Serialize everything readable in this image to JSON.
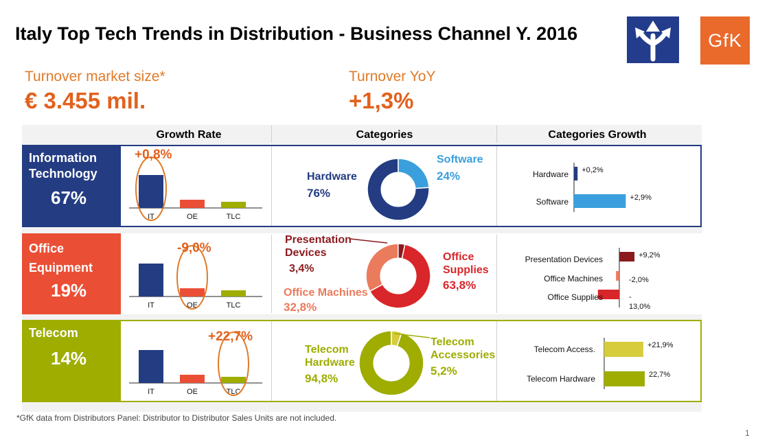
{
  "title": "Italy Top Tech Trends in Distribution - Business Channel Y. 2016",
  "logo": {
    "brand": "GfK",
    "accent": "#ea6a2b",
    "icon": "diverging-arrows-icon"
  },
  "kpis": [
    {
      "label": "Turnover market size*",
      "value": "€ 3.455 mil."
    },
    {
      "label": "Turnover YoY",
      "value": "+1,3%"
    }
  ],
  "column_headers": [
    "Growth Rate",
    "Categories",
    "Categories Growth"
  ],
  "footnote": "*GfK data from Distributors Panel: Distributor to Distributor Sales Units are not included.",
  "page_number": "1",
  "colors": {
    "it_dark": "#233c82",
    "it_light": "#3a9fdc",
    "oe_dark": "#ea4f35",
    "oe_red": "#d8262a",
    "oe_salmon": "#ea7b5c",
    "oe_maroon": "#8b1a1f",
    "tlc_green": "#9ead00",
    "tlc_light": "#d6cc3c",
    "highlight": "#e07a28"
  },
  "chart_data": [
    {
      "type": "bar",
      "segment": "Information Technology",
      "share": "67%",
      "categories": [
        "IT",
        "OE",
        "TLC"
      ],
      "values": [
        16,
        4,
        3
      ],
      "highlight": "IT",
      "growth_label": "+0,8%"
    },
    {
      "type": "pie",
      "segment": "Information Technology",
      "slices": [
        {
          "name": "Hardware",
          "value": 76,
          "label": "76%"
        },
        {
          "name": "Software",
          "value": 24,
          "label": "24%"
        }
      ]
    },
    {
      "type": "bar",
      "orientation": "horizontal",
      "segment": "Information Technology",
      "categories": [
        "Hardware",
        "Software"
      ],
      "values": [
        0.2,
        2.9
      ],
      "labels": [
        "+0,2%",
        "+2,9%"
      ]
    },
    {
      "type": "bar",
      "segment": "Office Equipment",
      "share": "19%",
      "categories": [
        "IT",
        "OE",
        "TLC"
      ],
      "values": [
        16,
        4,
        3
      ],
      "highlight": "OE",
      "growth_label": "-9,0%"
    },
    {
      "type": "pie",
      "segment": "Office Equipment",
      "slices": [
        {
          "name": "Office Supplies",
          "value": 63.8,
          "label": "63,8%"
        },
        {
          "name": "Office Machines",
          "value": 32.8,
          "label": "32,8%"
        },
        {
          "name": "Presentation Devices",
          "value": 3.4,
          "label": "3,4%"
        }
      ]
    },
    {
      "type": "bar",
      "orientation": "horizontal",
      "segment": "Office Equipment",
      "categories": [
        "Presentation Devices",
        "Office Machines",
        "Office Supplies"
      ],
      "values": [
        9.2,
        -2.0,
        -13.0
      ],
      "labels": [
        "+9,2%",
        "-2,0%",
        "-\n13,0%"
      ]
    },
    {
      "type": "bar",
      "segment": "Telecom",
      "share": "14%",
      "categories": [
        "IT",
        "OE",
        "TLC"
      ],
      "values": [
        16,
        4,
        3
      ],
      "highlight": "TLC",
      "growth_label": "+22,7%"
    },
    {
      "type": "pie",
      "segment": "Telecom",
      "slices": [
        {
          "name": "Telecom Hardware",
          "value": 94.8,
          "label": "94,8%"
        },
        {
          "name": "Telecom Accessories",
          "value": 5.2,
          "label": "5,2%"
        }
      ]
    },
    {
      "type": "bar",
      "orientation": "horizontal",
      "segment": "Telecom",
      "categories": [
        "Telecom Access.",
        "Telecom Hardware"
      ],
      "values": [
        21.9,
        22.7
      ],
      "labels": [
        "+21,9%",
        "22,7%"
      ]
    }
  ],
  "rows": [
    {
      "name_lines": [
        "Information",
        "Technology"
      ],
      "share": "67%"
    },
    {
      "name_lines": [
        "Office",
        "Equipment"
      ],
      "share": "19%"
    },
    {
      "name_lines": [
        "Telecom"
      ],
      "share": "14%"
    }
  ],
  "donut_text": {
    "it": {
      "hardware": "Hardware",
      "hardware_pct": "76%",
      "software": "Software",
      "software_pct": "24%"
    },
    "oe": {
      "pres1": "Presentation",
      "pres2": "Devices",
      "pres_pct": "3,4%",
      "sup1": "Office",
      "sup2": "Supplies",
      "sup_pct": "63,8%",
      "mach": "Office Machines",
      "mach_pct": "32,8%"
    },
    "tlc": {
      "hw1": "Telecom",
      "hw2": "Hardware",
      "hw_pct": "94,8%",
      "acc1": "Telecom",
      "acc2": "Accessories",
      "acc_pct": "5,2%"
    }
  }
}
